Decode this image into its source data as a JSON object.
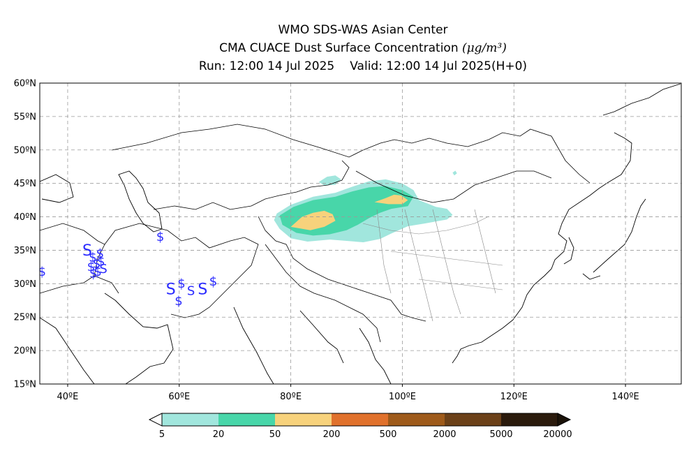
{
  "header": {
    "line1": "WMO SDS-WAS Asian Center",
    "line2_text": "CMA CUACE Dust Surface Concentration",
    "line2_unit": "(μg/m³)",
    "run": "Run: 12:00 14 Jul 2025",
    "valid": "Valid: 12:00 14 Jul 2025(H+0)"
  },
  "map": {
    "lon_range": [
      35,
      150
    ],
    "lat_range": [
      15,
      60
    ],
    "grid": true,
    "lon_ticks": [
      {
        "value": 40,
        "label": "40ºE"
      },
      {
        "value": 60,
        "label": "60ºE"
      },
      {
        "value": 80,
        "label": "80ºE"
      },
      {
        "value": 100,
        "label": "100ºE"
      },
      {
        "value": 120,
        "label": "120ºE"
      },
      {
        "value": 140,
        "label": "140ºE"
      }
    ],
    "lat_ticks": [
      {
        "value": 60,
        "label": "60ºN"
      },
      {
        "value": 55,
        "label": "55ºN"
      },
      {
        "value": 50,
        "label": "50ºN"
      },
      {
        "value": 45,
        "label": "45ºN"
      },
      {
        "value": 40,
        "label": "40ºN"
      },
      {
        "value": 35,
        "label": "35ºN"
      },
      {
        "value": 30,
        "label": "30ºN"
      },
      {
        "value": 25,
        "label": "25ºN"
      },
      {
        "value": 20,
        "label": "20ºN"
      },
      {
        "value": 15,
        "label": "15ºN"
      }
    ],
    "dust_regions": [
      {
        "level": "5-20",
        "color": "#a1e6dd",
        "points": [
          [
            77.5,
            40.5
          ],
          [
            80,
            41.8
          ],
          [
            84,
            43
          ],
          [
            88,
            43.6
          ],
          [
            91,
            44.5
          ],
          [
            94,
            45.3
          ],
          [
            97,
            45.6
          ],
          [
            100,
            45
          ],
          [
            102,
            44
          ],
          [
            103,
            42.5
          ],
          [
            106,
            41.5
          ],
          [
            108,
            41.2
          ],
          [
            109,
            40.3
          ],
          [
            108,
            39.6
          ],
          [
            104,
            39
          ],
          [
            101,
            38.6
          ],
          [
            98,
            37.5
          ],
          [
            96,
            36.7
          ],
          [
            93,
            36.2
          ],
          [
            90,
            36.4
          ],
          [
            87,
            36.6
          ],
          [
            83,
            36.3
          ],
          [
            80,
            36.8
          ],
          [
            78,
            38.2
          ],
          [
            77,
            39.5
          ]
        ]
      },
      {
        "level": "5-20",
        "color": "#a1e6dd",
        "points": [
          [
            85,
            45.2
          ],
          [
            86.5,
            46
          ],
          [
            88,
            46.2
          ],
          [
            89,
            45.6
          ],
          [
            88,
            44.8
          ],
          [
            86,
            44.7
          ]
        ]
      },
      {
        "level": "5-20",
        "color": "#a1e6dd",
        "points": [
          [
            109,
            46.6
          ],
          [
            109.5,
            46.9
          ],
          [
            109.8,
            46.5
          ],
          [
            109.3,
            46.2
          ]
        ]
      },
      {
        "level": "20-50",
        "color": "#48d6a9",
        "points": [
          [
            78,
            40.2
          ],
          [
            80.5,
            41.5
          ],
          [
            84,
            42.5
          ],
          [
            88,
            43
          ],
          [
            91,
            43.8
          ],
          [
            94,
            44.4
          ],
          [
            97,
            44.6
          ],
          [
            100,
            44
          ],
          [
            102,
            43
          ],
          [
            101,
            41.6
          ],
          [
            98,
            41.2
          ],
          [
            96,
            40.6
          ],
          [
            94,
            39.8
          ],
          [
            92,
            38.8
          ],
          [
            90,
            38
          ],
          [
            87,
            37.4
          ],
          [
            84,
            37.2
          ],
          [
            81,
            37.6
          ],
          [
            78.5,
            38.8
          ]
        ]
      },
      {
        "level": "50-200",
        "color": "#f7d27c",
        "points": [
          [
            80,
            38.5
          ],
          [
            82,
            40
          ],
          [
            84,
            40.6
          ],
          [
            86,
            40.9
          ],
          [
            87.5,
            40.4
          ],
          [
            88,
            39.4
          ],
          [
            86,
            38.5
          ],
          [
            83.5,
            38
          ]
        ]
      },
      {
        "level": "50-200",
        "color": "#f7d27c",
        "points": [
          [
            95,
            42.2
          ],
          [
            97,
            42.8
          ],
          [
            98.5,
            43.3
          ],
          [
            99.8,
            43.2
          ],
          [
            101,
            42.5
          ],
          [
            100,
            41.9
          ],
          [
            97.5,
            41.9
          ]
        ]
      }
    ],
    "markers": [
      {
        "lon": 43.5,
        "lat": 34.2,
        "glyph": "S",
        "size": 22
      },
      {
        "lon": 44.5,
        "lat": 33.3,
        "glyph": "$",
        "size": 18
      },
      {
        "lon": 45.2,
        "lat": 32.4,
        "glyph": "$",
        "size": 18
      },
      {
        "lon": 44.2,
        "lat": 31.9,
        "glyph": "$",
        "size": 18
      },
      {
        "lon": 45.8,
        "lat": 33.9,
        "glyph": "$",
        "size": 18
      },
      {
        "lon": 46.0,
        "lat": 32.7,
        "glyph": "$",
        "size": 18
      },
      {
        "lon": 45.4,
        "lat": 31.2,
        "glyph": "$",
        "size": 18
      },
      {
        "lon": 44.6,
        "lat": 30.9,
        "glyph": "$",
        "size": 18
      },
      {
        "lon": 46.4,
        "lat": 31.6,
        "glyph": "S",
        "size": 18
      },
      {
        "lon": 35.4,
        "lat": 31.2,
        "glyph": "$",
        "size": 18
      },
      {
        "lon": 56.6,
        "lat": 36.4,
        "glyph": "$",
        "size": 18
      },
      {
        "lon": 58.5,
        "lat": 28.4,
        "glyph": "S",
        "size": 22
      },
      {
        "lon": 60.4,
        "lat": 29.4,
        "glyph": "$",
        "size": 18
      },
      {
        "lon": 59.9,
        "lat": 26.8,
        "glyph": "$",
        "size": 18
      },
      {
        "lon": 62.1,
        "lat": 28.3,
        "glyph": "S",
        "size": 18
      },
      {
        "lon": 64.2,
        "lat": 28.4,
        "glyph": "S",
        "size": 22
      },
      {
        "lon": 66.1,
        "lat": 29.7,
        "glyph": "$",
        "size": 18
      }
    ]
  },
  "colorbar": {
    "labels": [
      "5",
      "20",
      "50",
      "200",
      "500",
      "2000",
      "5000",
      "20000"
    ],
    "under_color": "#ffffff",
    "over_color": "#1a1208",
    "colors": [
      "#a1e6dd",
      "#48d6a9",
      "#f7d27c",
      "#e0712c",
      "#9e5a1a",
      "#6b4018",
      "#2a1a0c"
    ]
  }
}
